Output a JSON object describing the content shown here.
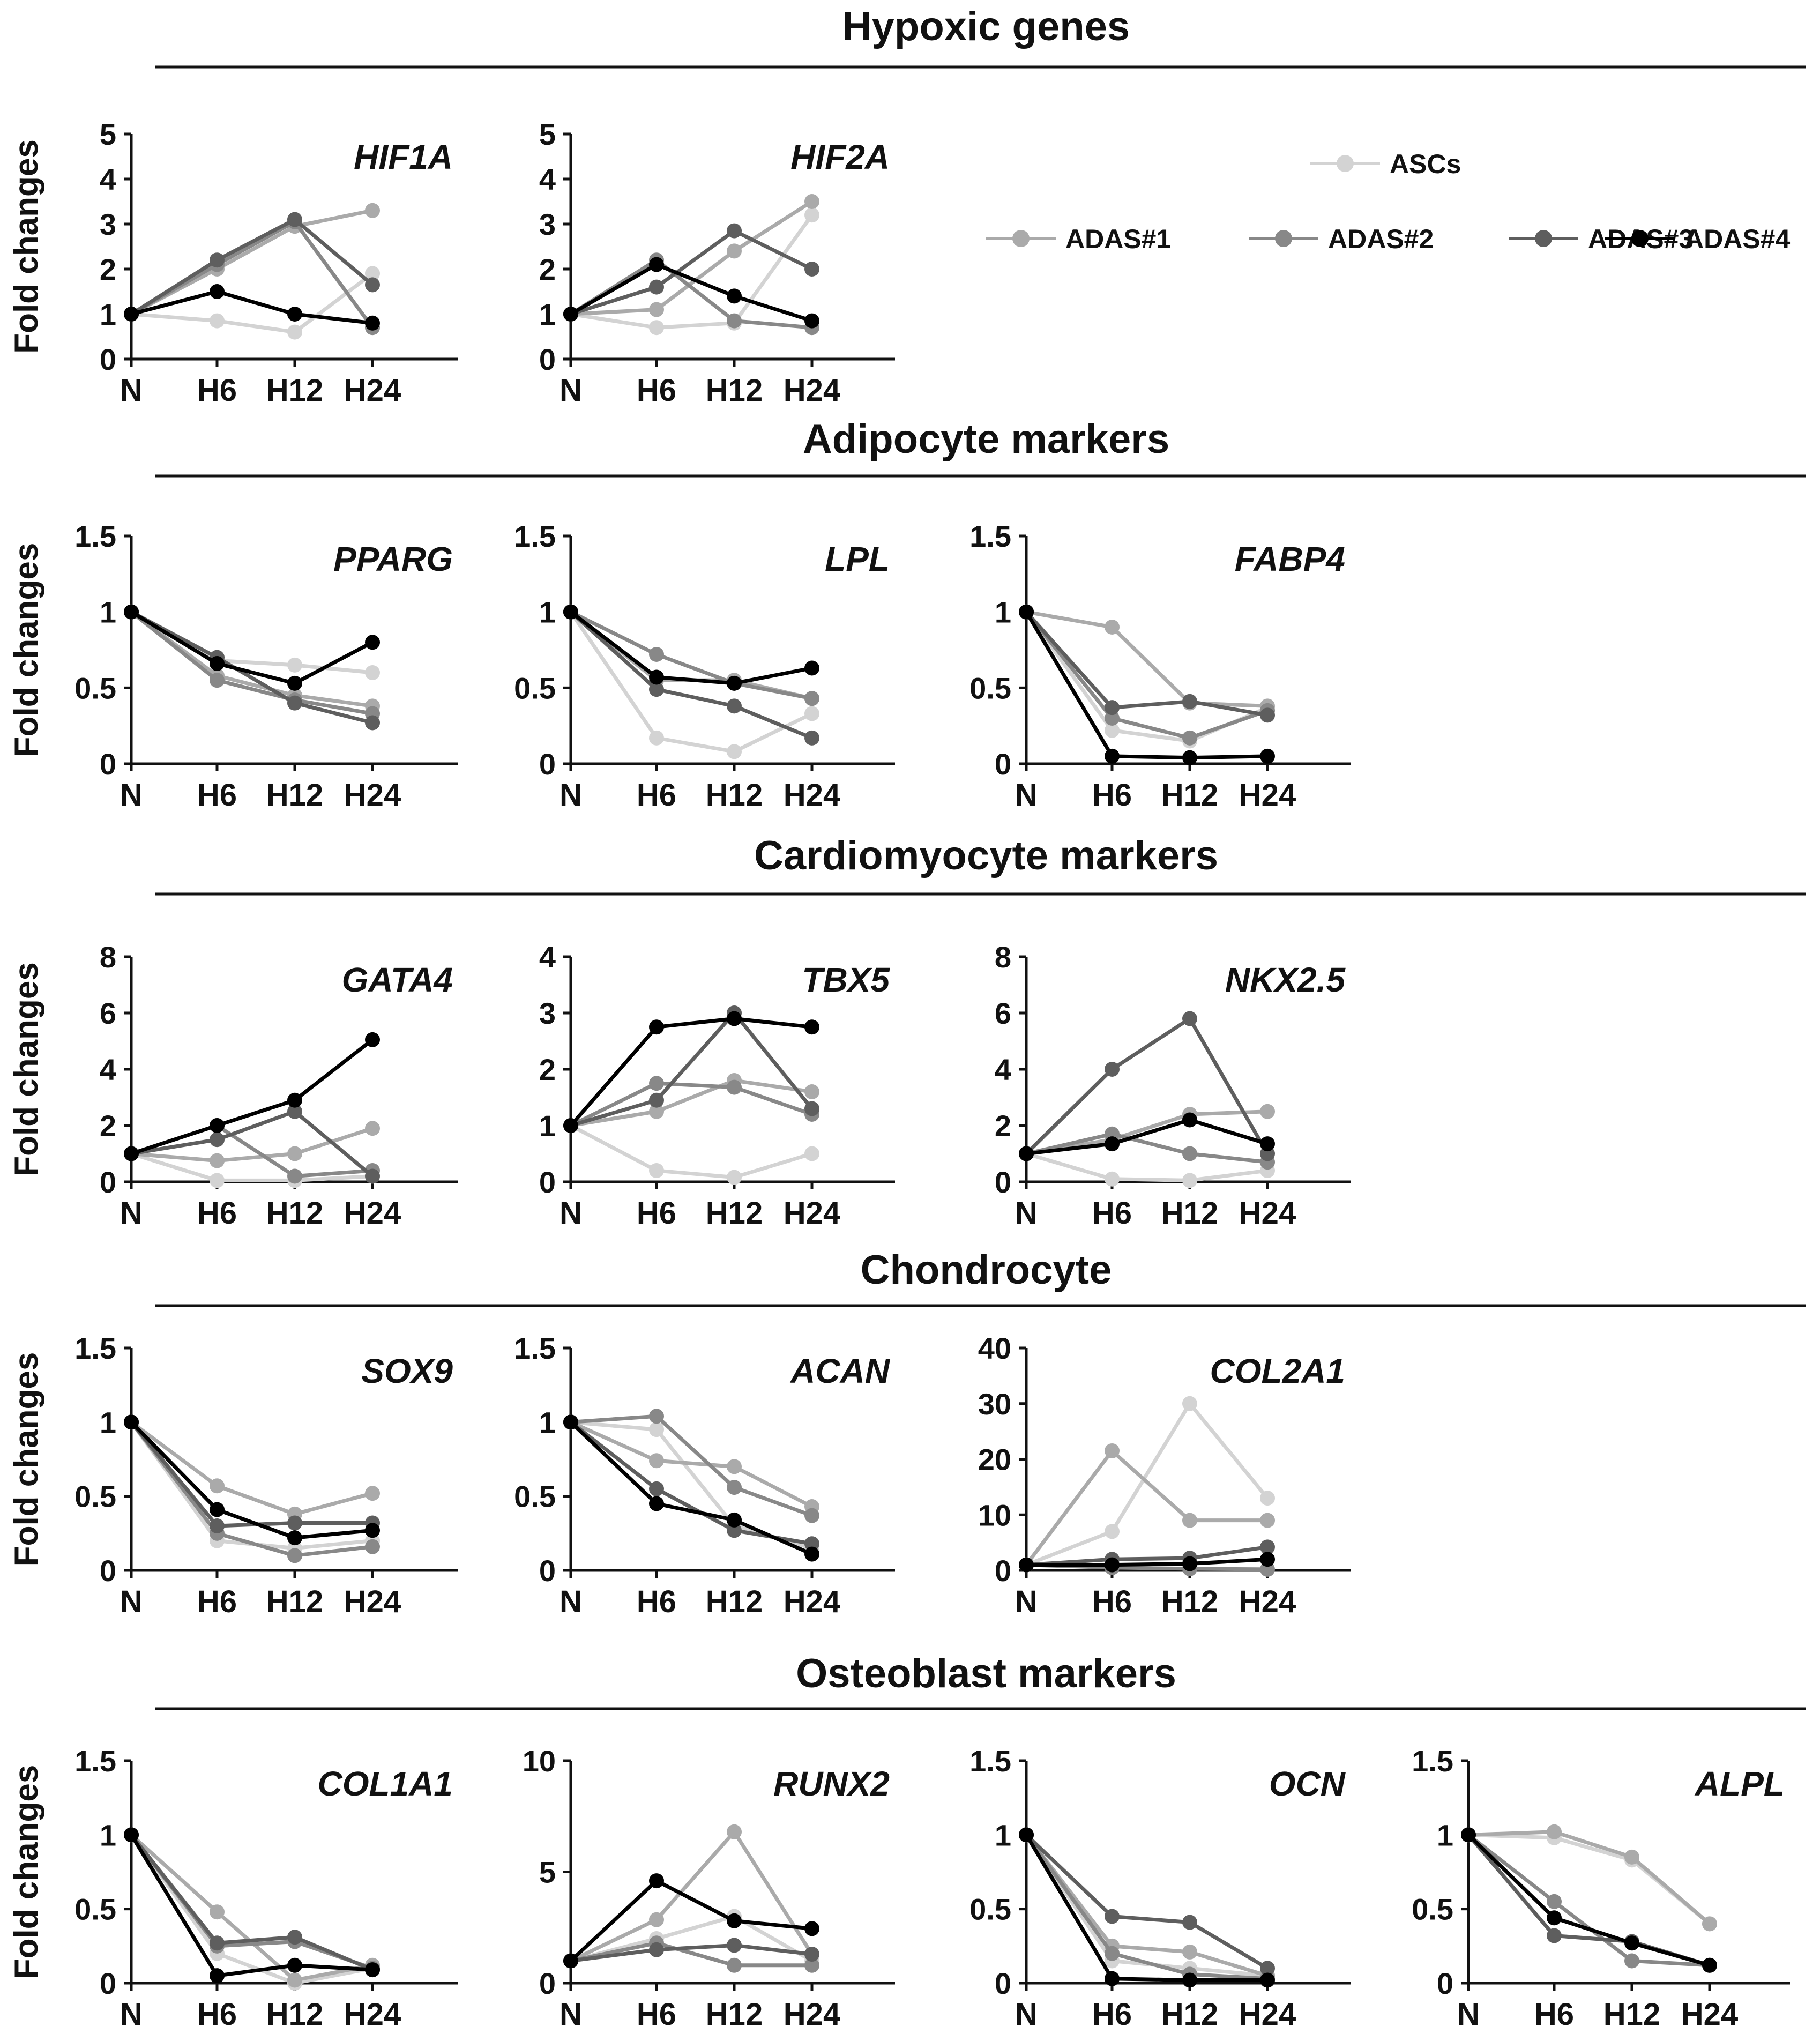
{
  "figure": {
    "x_categories": [
      "N",
      "H6",
      "H12",
      "H24"
    ],
    "ylabel": "Fold changes",
    "legend": {
      "series": [
        {
          "key": "ASCs",
          "label": "ASCs",
          "color": "#d3d3d3"
        },
        {
          "key": "ADAS1",
          "label": "ADAS#1",
          "color": "#aaaaaa"
        },
        {
          "key": "ADAS2",
          "label": "ADAS#2",
          "color": "#888888"
        },
        {
          "key": "ADAS3",
          "label": "ADAS#3",
          "color": "#5e5e5e"
        },
        {
          "key": "ADAS4",
          "label": "ADAS#4",
          "color": "#000000"
        }
      ]
    }
  },
  "sections": [
    {
      "title": "Hypoxic genes"
    },
    {
      "title": "Adipocyte markers"
    },
    {
      "title": "Cardiomyocyte markers"
    },
    {
      "title": "Chondrocyte"
    },
    {
      "title": "Osteoblast markers"
    }
  ],
  "chart_data": [
    {
      "type": "line",
      "section": 0,
      "title": "HIF1A",
      "xlabel": "",
      "ylabel": "Fold changes",
      "categories": [
        "N",
        "H6",
        "H12",
        "H24"
      ],
      "ylim": [
        0,
        5
      ],
      "yticks": [
        0,
        1,
        2,
        3,
        4,
        5
      ],
      "ytick_labels": [
        "0",
        "1",
        "2",
        "3",
        "4",
        "5"
      ],
      "series": [
        {
          "name": "ASCs",
          "values": [
            1,
            0.85,
            0.6,
            1.9
          ]
        },
        {
          "name": "ADAS#1",
          "values": [
            1,
            2.0,
            2.95,
            3.3
          ]
        },
        {
          "name": "ADAS#2",
          "values": [
            1,
            2.1,
            3.05,
            0.7
          ]
        },
        {
          "name": "ADAS#3",
          "values": [
            1,
            2.2,
            3.1,
            1.65
          ]
        },
        {
          "name": "ADAS#4",
          "values": [
            1,
            1.5,
            1.0,
            0.8
          ]
        }
      ]
    },
    {
      "type": "line",
      "section": 0,
      "title": "HIF2A",
      "xlabel": "",
      "ylabel": "",
      "categories": [
        "N",
        "H6",
        "H12",
        "H24"
      ],
      "ylim": [
        0,
        5
      ],
      "yticks": [
        0,
        1,
        2,
        3,
        4,
        5
      ],
      "ytick_labels": [
        "0",
        "1",
        "2",
        "3",
        "4",
        "5"
      ],
      "series": [
        {
          "name": "ASCs",
          "values": [
            1,
            0.7,
            0.8,
            3.2
          ]
        },
        {
          "name": "ADAS#1",
          "values": [
            1,
            1.1,
            2.4,
            3.5
          ]
        },
        {
          "name": "ADAS#2",
          "values": [
            1,
            2.2,
            0.85,
            0.7
          ]
        },
        {
          "name": "ADAS#3",
          "values": [
            1,
            1.6,
            2.85,
            2.0
          ]
        },
        {
          "name": "ADAS#4",
          "values": [
            1,
            2.1,
            1.4,
            0.85
          ]
        }
      ]
    },
    {
      "type": "line",
      "section": 1,
      "title": "PPARG",
      "xlabel": "",
      "ylabel": "Fold changes",
      "categories": [
        "N",
        "H6",
        "H12",
        "H24"
      ],
      "ylim": [
        0,
        1.5
      ],
      "yticks": [
        0,
        0.5,
        1,
        1.5
      ],
      "ytick_labels": [
        "0",
        "0.5",
        "1",
        "1.5"
      ],
      "series": [
        {
          "name": "ASCs",
          "values": [
            1,
            0.68,
            0.65,
            0.6
          ]
        },
        {
          "name": "ADAS#1",
          "values": [
            1,
            0.58,
            0.45,
            0.38
          ]
        },
        {
          "name": "ADAS#2",
          "values": [
            1,
            0.55,
            0.42,
            0.33
          ]
        },
        {
          "name": "ADAS#3",
          "values": [
            1,
            0.7,
            0.4,
            0.27
          ]
        },
        {
          "name": "ADAS#4",
          "values": [
            1,
            0.66,
            0.53,
            0.8
          ]
        }
      ]
    },
    {
      "type": "line",
      "section": 1,
      "title": "LPL",
      "xlabel": "",
      "ylabel": "",
      "categories": [
        "N",
        "H6",
        "H12",
        "H24"
      ],
      "ylim": [
        0,
        1.5
      ],
      "yticks": [
        0,
        0.5,
        1,
        1.5
      ],
      "ytick_labels": [
        "0",
        "0.5",
        "1",
        "1.5"
      ],
      "series": [
        {
          "name": "ASCs",
          "values": [
            1,
            0.17,
            0.08,
            0.33
          ]
        },
        {
          "name": "ADAS#1",
          "values": [
            1,
            0.55,
            0.55,
            0.43
          ]
        },
        {
          "name": "ADAS#2",
          "values": [
            1,
            0.72,
            0.53,
            0.43
          ]
        },
        {
          "name": "ADAS#3",
          "values": [
            1,
            0.49,
            0.38,
            0.17
          ]
        },
        {
          "name": "ADAS#4",
          "values": [
            1,
            0.57,
            0.53,
            0.63
          ]
        }
      ]
    },
    {
      "type": "line",
      "section": 1,
      "title": "FABP4",
      "xlabel": "",
      "ylabel": "",
      "categories": [
        "N",
        "H6",
        "H12",
        "H24"
      ],
      "ylim": [
        0,
        1.5
      ],
      "yticks": [
        0,
        0.5,
        1,
        1.5
      ],
      "ytick_labels": [
        "0",
        "0.5",
        "1",
        "1.5"
      ],
      "series": [
        {
          "name": "ASCs",
          "values": [
            1,
            0.22,
            0.15,
            0.37
          ]
        },
        {
          "name": "ADAS#1",
          "values": [
            1,
            0.9,
            0.4,
            0.38
          ]
        },
        {
          "name": "ADAS#2",
          "values": [
            1,
            0.3,
            0.17,
            0.35
          ]
        },
        {
          "name": "ADAS#3",
          "values": [
            1,
            0.37,
            0.41,
            0.32
          ]
        },
        {
          "name": "ADAS#4",
          "values": [
            1,
            0.05,
            0.04,
            0.05
          ]
        }
      ]
    },
    {
      "type": "line",
      "section": 2,
      "title": "GATA4",
      "xlabel": "",
      "ylabel": "Fold changes",
      "categories": [
        "N",
        "H6",
        "H12",
        "H24"
      ],
      "ylim": [
        0,
        8
      ],
      "yticks": [
        0,
        2,
        4,
        6,
        8
      ],
      "ytick_labels": [
        "0",
        "2",
        "4",
        "6",
        "8"
      ],
      "series": [
        {
          "name": "ASCs",
          "values": [
            1,
            0.05,
            0.05,
            0.2
          ]
        },
        {
          "name": "ADAS#1",
          "values": [
            1,
            0.75,
            1.0,
            1.9
          ]
        },
        {
          "name": "ADAS#2",
          "values": [
            1,
            2.0,
            0.2,
            0.4
          ]
        },
        {
          "name": "ADAS#3",
          "values": [
            1,
            1.5,
            2.5,
            0.2
          ]
        },
        {
          "name": "ADAS#4",
          "values": [
            1,
            2.0,
            2.9,
            5.05
          ]
        }
      ]
    },
    {
      "type": "line",
      "section": 2,
      "title": "TBX5",
      "xlabel": "",
      "ylabel": "",
      "categories": [
        "N",
        "H6",
        "H12",
        "H24"
      ],
      "ylim": [
        0,
        4
      ],
      "yticks": [
        0,
        1,
        2,
        3,
        4
      ],
      "ytick_labels": [
        "0",
        "1",
        "2",
        "3",
        "4"
      ],
      "series": [
        {
          "name": "ASCs",
          "values": [
            1,
            0.2,
            0.08,
            0.5
          ]
        },
        {
          "name": "ADAS#1",
          "values": [
            1,
            1.25,
            1.8,
            1.6
          ]
        },
        {
          "name": "ADAS#2",
          "values": [
            1,
            1.75,
            1.68,
            1.2
          ]
        },
        {
          "name": "ADAS#3",
          "values": [
            1,
            1.45,
            3.0,
            1.3
          ]
        },
        {
          "name": "ADAS#4",
          "values": [
            1,
            2.75,
            2.9,
            2.75
          ]
        }
      ]
    },
    {
      "type": "line",
      "section": 2,
      "title": "NKX2.5",
      "xlabel": "",
      "ylabel": "",
      "categories": [
        "N",
        "H6",
        "H12",
        "H24"
      ],
      "ylim": [
        0,
        8
      ],
      "yticks": [
        0,
        2,
        4,
        6,
        8
      ],
      "ytick_labels": [
        "0",
        "2",
        "4",
        "6",
        "8"
      ],
      "series": [
        {
          "name": "ASCs",
          "values": [
            1,
            0.1,
            0.05,
            0.4
          ]
        },
        {
          "name": "ADAS#1",
          "values": [
            1,
            1.5,
            2.4,
            2.5
          ]
        },
        {
          "name": "ADAS#2",
          "values": [
            1,
            1.7,
            1.0,
            0.7
          ]
        },
        {
          "name": "ADAS#3",
          "values": [
            1,
            4.0,
            5.8,
            1.0
          ]
        },
        {
          "name": "ADAS#4",
          "values": [
            1,
            1.35,
            2.2,
            1.35
          ]
        }
      ]
    },
    {
      "type": "line",
      "section": 3,
      "title": "SOX9",
      "xlabel": "",
      "ylabel": "Fold changes",
      "categories": [
        "N",
        "H6",
        "H12",
        "H24"
      ],
      "ylim": [
        0,
        1.5
      ],
      "yticks": [
        0,
        0.5,
        1,
        1.5
      ],
      "ytick_labels": [
        "0",
        "0.5",
        "1",
        "1.5"
      ],
      "series": [
        {
          "name": "ASCs",
          "values": [
            1,
            0.2,
            0.15,
            0.2
          ]
        },
        {
          "name": "ADAS#1",
          "values": [
            1,
            0.57,
            0.38,
            0.52
          ]
        },
        {
          "name": "ADAS#2",
          "values": [
            1,
            0.25,
            0.1,
            0.16
          ]
        },
        {
          "name": "ADAS#3",
          "values": [
            1,
            0.3,
            0.32,
            0.32
          ]
        },
        {
          "name": "ADAS#4",
          "values": [
            1,
            0.41,
            0.22,
            0.27
          ]
        }
      ]
    },
    {
      "type": "line",
      "section": 3,
      "title": "ACAN",
      "xlabel": "",
      "ylabel": "",
      "categories": [
        "N",
        "H6",
        "H12",
        "H24"
      ],
      "ylim": [
        0,
        1.5
      ],
      "yticks": [
        0,
        0.5,
        1,
        1.5
      ],
      "ytick_labels": [
        "0",
        "0.5",
        "1",
        "1.5"
      ],
      "series": [
        {
          "name": "ASCs",
          "values": [
            1,
            0.95,
            0.3,
            0.15
          ]
        },
        {
          "name": "ADAS#1",
          "values": [
            1,
            0.74,
            0.7,
            0.43
          ]
        },
        {
          "name": "ADAS#2",
          "values": [
            1,
            1.04,
            0.56,
            0.37
          ]
        },
        {
          "name": "ADAS#3",
          "values": [
            1,
            0.55,
            0.27,
            0.18
          ]
        },
        {
          "name": "ADAS#4",
          "values": [
            1,
            0.45,
            0.34,
            0.11
          ]
        }
      ]
    },
    {
      "type": "line",
      "section": 3,
      "title": "COL2A1",
      "xlabel": "",
      "ylabel": "",
      "categories": [
        "N",
        "H6",
        "H12",
        "H24"
      ],
      "ylim": [
        0,
        40
      ],
      "yticks": [
        0,
        10,
        20,
        30,
        40
      ],
      "ytick_labels": [
        "0",
        "10",
        "20",
        "30",
        "40"
      ],
      "series": [
        {
          "name": "ASCs",
          "values": [
            1,
            7,
            30,
            13
          ]
        },
        {
          "name": "ADAS#1",
          "values": [
            1,
            21.5,
            9,
            9
          ]
        },
        {
          "name": "ADAS#2",
          "values": [
            1,
            0.5,
            0.3,
            0.2
          ]
        },
        {
          "name": "ADAS#3",
          "values": [
            1,
            2,
            2.2,
            4.2
          ]
        },
        {
          "name": "ADAS#4",
          "values": [
            1,
            1,
            1.2,
            2
          ]
        }
      ]
    },
    {
      "type": "line",
      "section": 4,
      "title": "COL1A1",
      "xlabel": "",
      "ylabel": "Fold changes",
      "categories": [
        "N",
        "H6",
        "H12",
        "H24"
      ],
      "ylim": [
        0,
        1.5
      ],
      "yticks": [
        0,
        0.5,
        1,
        1.5
      ],
      "ytick_labels": [
        "0",
        "0.5",
        "1",
        "1.5"
      ],
      "series": [
        {
          "name": "ASCs",
          "values": [
            1,
            0.2,
            0.0,
            0.1
          ]
        },
        {
          "name": "ADAS#1",
          "values": [
            1,
            0.48,
            0.02,
            0.12
          ]
        },
        {
          "name": "ADAS#2",
          "values": [
            1,
            0.25,
            0.28,
            0.1
          ]
        },
        {
          "name": "ADAS#3",
          "values": [
            1,
            0.27,
            0.31,
            0.09
          ]
        },
        {
          "name": "ADAS#4",
          "values": [
            1,
            0.05,
            0.12,
            0.09
          ]
        }
      ]
    },
    {
      "type": "line",
      "section": 4,
      "title": "RUNX2",
      "xlabel": "",
      "ylabel": "",
      "categories": [
        "N",
        "H6",
        "H12",
        "H24"
      ],
      "ylim": [
        0,
        10
      ],
      "yticks": [
        0,
        5,
        10
      ],
      "ytick_labels": [
        "0",
        "5",
        "10"
      ],
      "series": [
        {
          "name": "ASCs",
          "values": [
            1,
            2.0,
            3.0,
            1.0
          ]
        },
        {
          "name": "ADAS#1",
          "values": [
            1,
            2.85,
            6.8,
            1.3
          ]
        },
        {
          "name": "ADAS#2",
          "values": [
            1,
            1.8,
            0.8,
            0.8
          ]
        },
        {
          "name": "ADAS#3",
          "values": [
            1,
            1.5,
            1.7,
            1.3
          ]
        },
        {
          "name": "ADAS#4",
          "values": [
            1,
            4.6,
            2.8,
            2.45
          ]
        }
      ]
    },
    {
      "type": "line",
      "section": 4,
      "title": "OCN",
      "xlabel": "",
      "ylabel": "",
      "categories": [
        "N",
        "H6",
        "H12",
        "H24"
      ],
      "ylim": [
        0,
        1.5
      ],
      "yticks": [
        0,
        0.5,
        1,
        1.5
      ],
      "ytick_labels": [
        "0",
        "0.5",
        "1",
        "1.5"
      ],
      "series": [
        {
          "name": "ASCs",
          "values": [
            1,
            0.15,
            0.1,
            0.05
          ]
        },
        {
          "name": "ADAS#1",
          "values": [
            1,
            0.25,
            0.21,
            0.05
          ]
        },
        {
          "name": "ADAS#2",
          "values": [
            1,
            0.2,
            0.06,
            0.03
          ]
        },
        {
          "name": "ADAS#3",
          "values": [
            1,
            0.45,
            0.41,
            0.1
          ]
        },
        {
          "name": "ADAS#4",
          "values": [
            1,
            0.03,
            0.02,
            0.02
          ]
        }
      ]
    },
    {
      "type": "line",
      "section": 4,
      "title": "ALPL",
      "xlabel": "",
      "ylabel": "",
      "categories": [
        "N",
        "H6",
        "H12",
        "H24"
      ],
      "ylim": [
        0,
        1.5
      ],
      "yticks": [
        0,
        0.5,
        1,
        1.5
      ],
      "ytick_labels": [
        "0",
        "0.5",
        "1",
        "1.5"
      ],
      "series": [
        {
          "name": "ASCs",
          "values": [
            1,
            0.98,
            0.83,
            0.4
          ]
        },
        {
          "name": "ADAS#1",
          "values": [
            1,
            1.02,
            0.85,
            0.4
          ]
        },
        {
          "name": "ADAS#2",
          "values": [
            1,
            0.55,
            0.15,
            0.12
          ]
        },
        {
          "name": "ADAS#3",
          "values": [
            1,
            0.32,
            0.28,
            0.12
          ]
        },
        {
          "name": "ADAS#4",
          "values": [
            1,
            0.44,
            0.27,
            0.12
          ]
        }
      ]
    }
  ]
}
